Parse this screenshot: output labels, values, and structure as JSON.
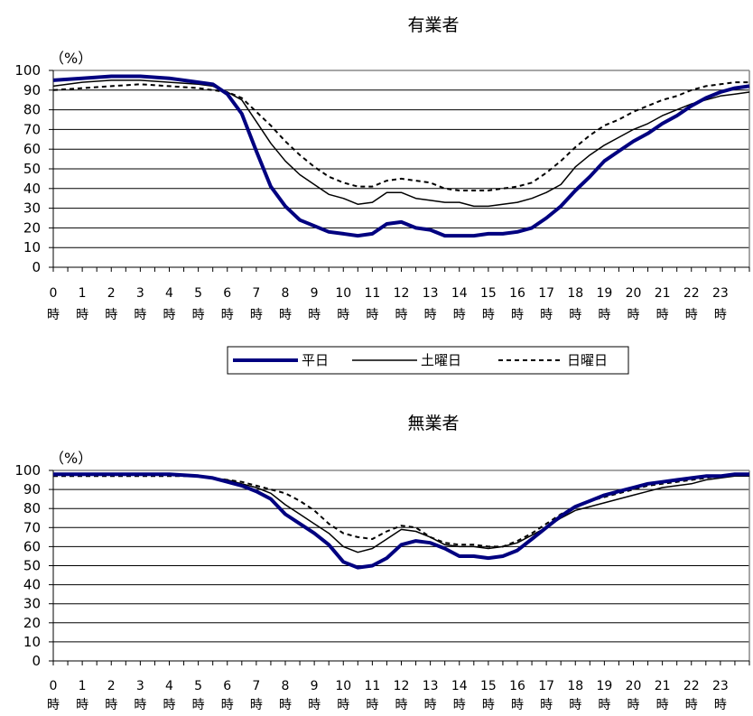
{
  "legend": {
    "items": [
      {
        "label": "平日",
        "style": "thick"
      },
      {
        "label": "土曜日",
        "style": "solid"
      },
      {
        "label": "日曜日",
        "style": "dashed"
      }
    ]
  },
  "colors": {
    "weekday": "#000080",
    "saturday": "#000000",
    "sunday": "#000000",
    "grid": "#000000"
  },
  "chart_data": [
    {
      "type": "line",
      "title": "有業者",
      "unit_label": "（%）",
      "ylim": [
        0,
        100
      ],
      "yticks": [
        0,
        10,
        20,
        30,
        40,
        50,
        60,
        70,
        80,
        90,
        100
      ],
      "xlim": [
        0,
        24
      ],
      "hour_labels": [
        "0",
        "1",
        "2",
        "3",
        "4",
        "5",
        "6",
        "7",
        "8",
        "9",
        "10",
        "11",
        "12",
        "13",
        "14",
        "15",
        "16",
        "17",
        "18",
        "19",
        "20",
        "21",
        "22",
        "23"
      ],
      "hour_suffix": "時",
      "grid": true,
      "legend_position": "bottom",
      "series": [
        {
          "name": "平日",
          "style": "thick",
          "x": [
            0,
            1,
            2,
            3,
            4,
            5,
            5.5,
            6,
            6.5,
            7,
            7.5,
            8,
            8.5,
            9,
            9.5,
            10,
            10.5,
            11,
            11.5,
            12,
            12.5,
            13,
            13.5,
            14,
            14.5,
            15,
            15.5,
            16,
            16.5,
            17,
            17.5,
            18,
            18.5,
            19,
            19.5,
            20,
            20.5,
            21,
            21.5,
            22,
            22.5,
            23,
            23.5,
            24
          ],
          "values": [
            95,
            96,
            97,
            97,
            96,
            94,
            93,
            88,
            78,
            59,
            41,
            31,
            24,
            21,
            18,
            17,
            16,
            17,
            22,
            23,
            20,
            19,
            16,
            16,
            16,
            17,
            17,
            18,
            20,
            25,
            31,
            39,
            46,
            54,
            59,
            64,
            68,
            73,
            77,
            82,
            86,
            89,
            91,
            92
          ]
        },
        {
          "name": "土曜日",
          "style": "solid",
          "x": [
            0,
            1,
            2,
            3,
            4,
            5,
            5.5,
            6,
            6.5,
            7,
            7.5,
            8,
            8.5,
            9,
            9.5,
            10,
            10.5,
            11,
            11.5,
            12,
            12.5,
            13,
            13.5,
            14,
            14.5,
            15,
            15.5,
            16,
            16.5,
            17,
            17.5,
            18,
            18.5,
            19,
            19.5,
            20,
            20.5,
            21,
            21.5,
            22,
            22.5,
            23,
            23.5,
            24
          ],
          "values": [
            92,
            94,
            95,
            95,
            94,
            93,
            92,
            89,
            85,
            74,
            63,
            54,
            47,
            42,
            37,
            35,
            32,
            33,
            38,
            38,
            35,
            34,
            33,
            33,
            31,
            31,
            32,
            33,
            35,
            38,
            42,
            51,
            57,
            62,
            66,
            70,
            73,
            77,
            80,
            83,
            85,
            87,
            88,
            89
          ]
        },
        {
          "name": "日曜日",
          "style": "dashed",
          "x": [
            0,
            1,
            2,
            3,
            4,
            5,
            5.5,
            6,
            6.5,
            7,
            7.5,
            8,
            8.5,
            9,
            9.5,
            10,
            10.5,
            11,
            11.5,
            12,
            12.5,
            13,
            13.5,
            14,
            14.5,
            15,
            15.5,
            16,
            16.5,
            17,
            17.5,
            18,
            18.5,
            19,
            19.5,
            20,
            20.5,
            21,
            21.5,
            22,
            22.5,
            23,
            23.5,
            24
          ],
          "values": [
            90,
            91,
            92,
            93,
            92,
            91,
            90,
            89,
            86,
            79,
            72,
            64,
            57,
            51,
            46,
            43,
            41,
            41,
            44,
            45,
            44,
            43,
            40,
            39,
            39,
            39,
            40,
            41,
            43,
            48,
            54,
            61,
            67,
            72,
            75,
            79,
            82,
            85,
            87,
            90,
            92,
            93,
            94,
            94
          ]
        }
      ]
    },
    {
      "type": "line",
      "title": "無業者",
      "unit_label": "（%）",
      "ylim": [
        0,
        100
      ],
      "yticks": [
        0,
        10,
        20,
        30,
        40,
        50,
        60,
        70,
        80,
        90,
        100
      ],
      "xlim": [
        0,
        24
      ],
      "hour_labels": [
        "0",
        "1",
        "2",
        "3",
        "4",
        "5",
        "6",
        "7",
        "8",
        "9",
        "10",
        "11",
        "12",
        "13",
        "14",
        "15",
        "16",
        "17",
        "18",
        "19",
        "20",
        "21",
        "22",
        "23"
      ],
      "hour_suffix": "時",
      "grid": true,
      "series": [
        {
          "name": "平日",
          "style": "thick",
          "x": [
            0,
            1,
            2,
            3,
            4,
            5,
            5.5,
            6,
            6.5,
            7,
            7.5,
            8,
            8.5,
            9,
            9.5,
            10,
            10.5,
            11,
            11.5,
            12,
            12.5,
            13,
            13.5,
            14,
            14.5,
            15,
            15.5,
            16,
            16.5,
            17,
            17.5,
            18,
            18.5,
            19,
            19.5,
            20,
            20.5,
            21,
            21.5,
            22,
            22.5,
            23,
            23.5,
            24
          ],
          "values": [
            98,
            98,
            98,
            98,
            98,
            97,
            96,
            94,
            92,
            89,
            85,
            77,
            72,
            67,
            61,
            52,
            49,
            50,
            54,
            61,
            63,
            62,
            59,
            55,
            55,
            54,
            55,
            58,
            64,
            70,
            76,
            81,
            84,
            87,
            89,
            91,
            93,
            94,
            95,
            96,
            97,
            97,
            98,
            98
          ]
        },
        {
          "name": "土曜日",
          "style": "solid",
          "x": [
            0,
            1,
            2,
            3,
            4,
            5,
            5.5,
            6,
            6.5,
            7,
            7.5,
            8,
            8.5,
            9,
            9.5,
            10,
            10.5,
            11,
            11.5,
            12,
            12.5,
            13,
            13.5,
            14,
            14.5,
            15,
            15.5,
            16,
            16.5,
            17,
            17.5,
            18,
            18.5,
            19,
            19.5,
            20,
            20.5,
            21,
            21.5,
            22,
            22.5,
            23,
            23.5,
            24
          ],
          "values": [
            98,
            98,
            98,
            98,
            98,
            97,
            96,
            95,
            93,
            91,
            88,
            82,
            77,
            72,
            67,
            60,
            57,
            59,
            64,
            69,
            68,
            65,
            61,
            60,
            60,
            59,
            60,
            62,
            66,
            70,
            75,
            79,
            81,
            83,
            85,
            87,
            89,
            91,
            92,
            93,
            95,
            96,
            97,
            97
          ]
        },
        {
          "name": "日曜日",
          "style": "dashed",
          "x": [
            0,
            1,
            2,
            3,
            4,
            5,
            5.5,
            6,
            6.5,
            7,
            7.5,
            8,
            8.5,
            9,
            9.5,
            10,
            10.5,
            11,
            11.5,
            12,
            12.5,
            13,
            13.5,
            14,
            14.5,
            15,
            15.5,
            16,
            16.5,
            17,
            17.5,
            18,
            18.5,
            19,
            19.5,
            20,
            20.5,
            21,
            21.5,
            22,
            22.5,
            23,
            23.5,
            24
          ],
          "values": [
            97,
            97,
            97,
            97,
            97,
            97,
            96,
            95,
            94,
            92,
            90,
            88,
            84,
            79,
            72,
            67,
            65,
            64,
            68,
            71,
            70,
            65,
            62,
            61,
            61,
            60,
            60,
            63,
            67,
            72,
            77,
            81,
            84,
            86,
            88,
            90,
            92,
            93,
            94,
            95,
            96,
            97,
            98,
            98
          ]
        }
      ]
    }
  ]
}
